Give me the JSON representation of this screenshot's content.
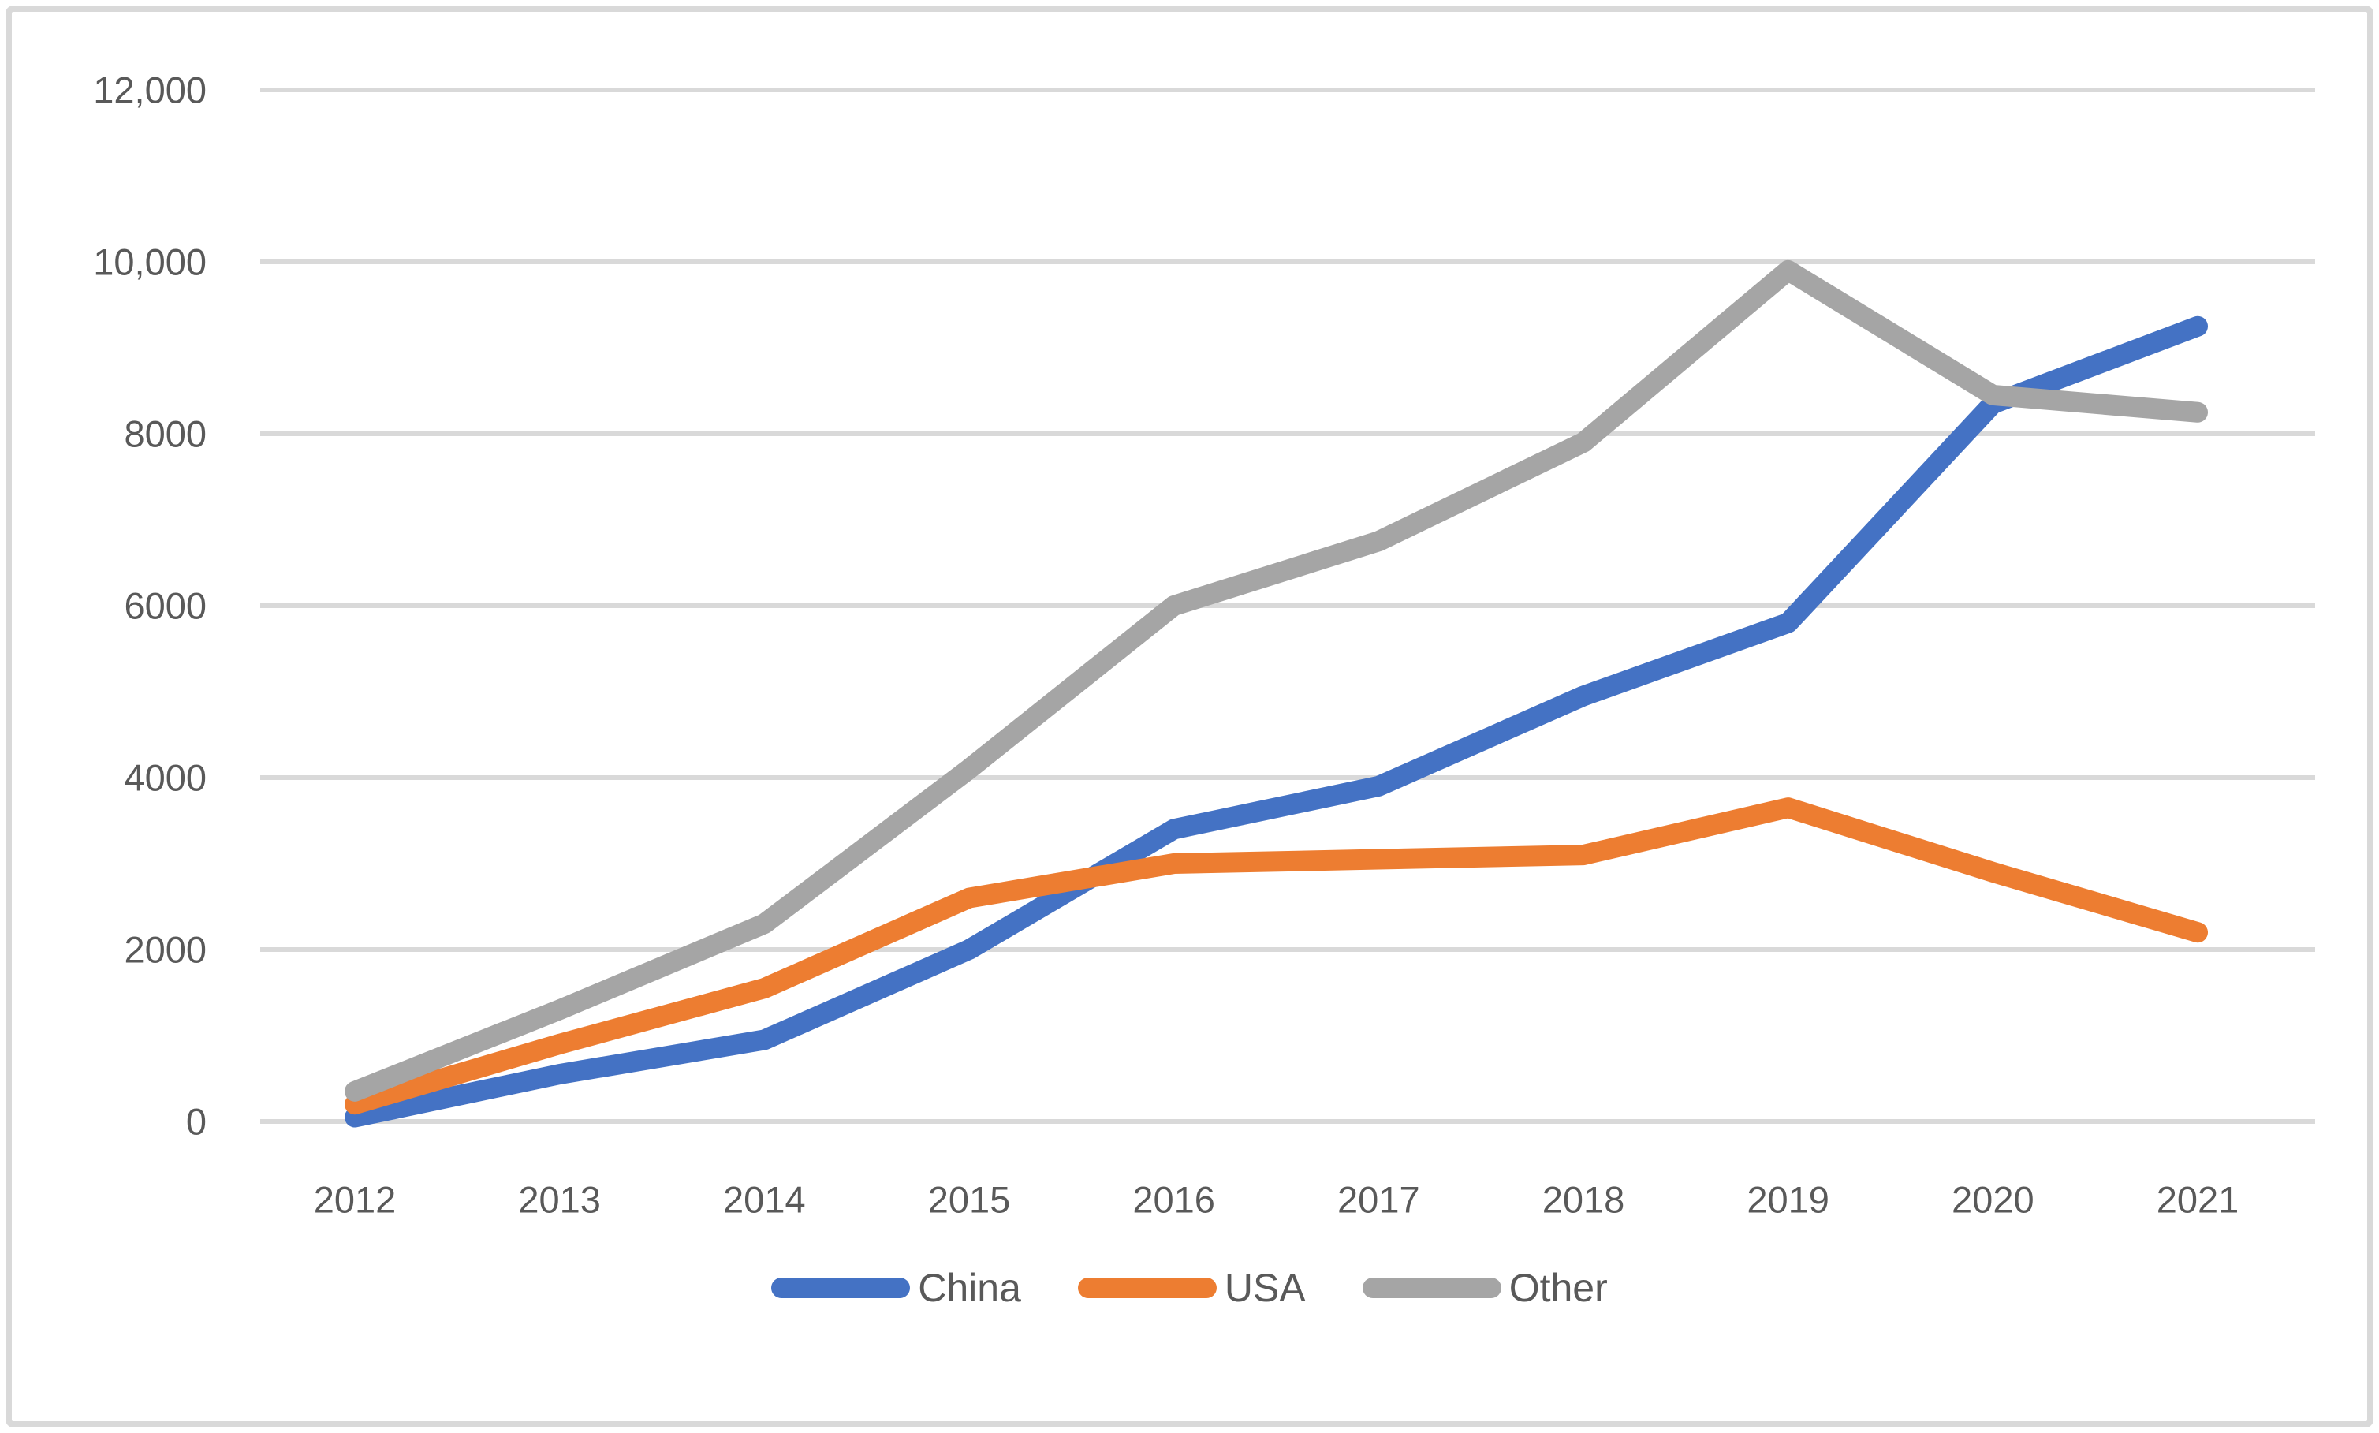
{
  "chart_data": {
    "type": "line",
    "x": [
      "2012",
      "2013",
      "2014",
      "2015",
      "2016",
      "2017",
      "2018",
      "2019",
      "2020",
      "2021"
    ],
    "series": [
      {
        "name": "China",
        "color": "#4472C4",
        "values": [
          50,
          550,
          950,
          2000,
          3400,
          3900,
          4950,
          5800,
          8350,
          9250
        ]
      },
      {
        "name": "USA",
        "color": "#ED7D31",
        "values": [
          200,
          900,
          1550,
          2600,
          3000,
          3050,
          3100,
          3650,
          2900,
          2200
        ]
      },
      {
        "name": "Other",
        "color": "#A5A5A5",
        "values": [
          350,
          1300,
          2300,
          4100,
          6000,
          6750,
          7900,
          9900,
          8450,
          8250
        ]
      }
    ],
    "title": "",
    "xlabel": "",
    "ylabel": "",
    "ylim": [
      0,
      12000
    ],
    "ytick_values": [
      0,
      2000,
      4000,
      6000,
      8000,
      10000,
      12000
    ],
    "ytick_labels": [
      "0",
      "2000",
      "4000",
      "6000",
      "8000",
      "10,000",
      "12,000"
    ],
    "grid": true,
    "legend_position": "bottom"
  },
  "colors": {
    "background": "#FFFFFF",
    "gridline": "#D9D9D9",
    "border_frame": "#D9D9D9",
    "axis_text": "#595959"
  }
}
